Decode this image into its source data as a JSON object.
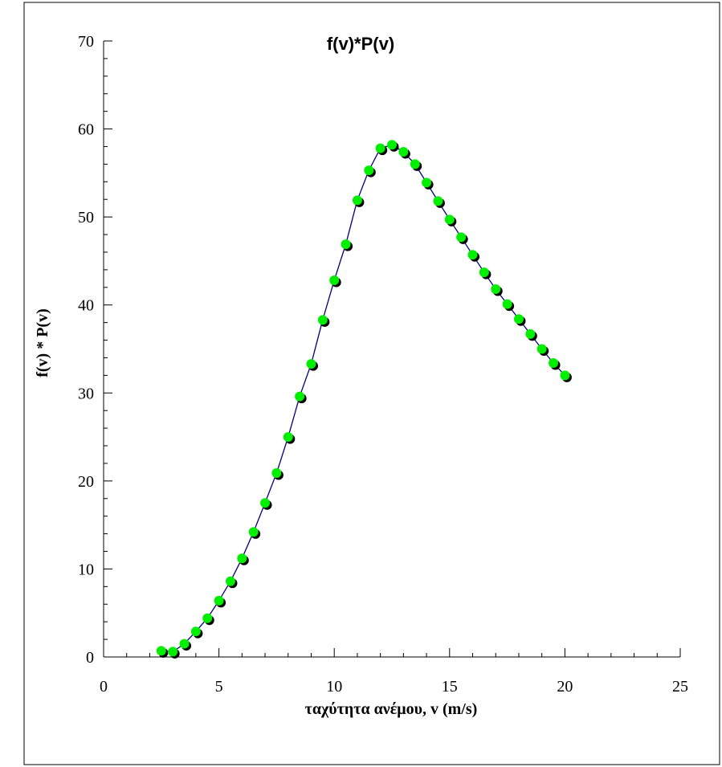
{
  "chart_data": {
    "type": "line",
    "title": "f(v)*P(v)",
    "xlabel": "ταχύτητα ανέμου, v (m/s)",
    "ylabel": "f(v) * P(v)",
    "xlim": [
      0,
      25
    ],
    "ylim": [
      0,
      70
    ],
    "x_ticks": [
      0,
      5,
      10,
      15,
      20,
      25
    ],
    "y_ticks": [
      0,
      10,
      20,
      30,
      40,
      50,
      60,
      70
    ],
    "grid": false,
    "legend": "none",
    "line_color": "#000080",
    "marker_color": "#00ee00",
    "marker_shadow_color": "#000000",
    "series": [
      {
        "x": [
          2.5,
          3,
          3.5,
          4,
          4.5,
          5,
          5.5,
          6,
          6.5,
          7,
          7.5,
          8,
          8.5,
          9,
          9.5,
          10,
          10.5,
          11,
          11.5,
          12,
          12.5,
          13,
          13.5,
          14,
          14.5,
          15,
          15.5,
          16,
          16.5,
          17,
          17.5,
          18,
          18.5,
          19,
          19.5,
          20
        ],
        "values": [
          0.7,
          0.6,
          1.5,
          2.9,
          4.4,
          6.4,
          8.6,
          11.2,
          14.2,
          17.5,
          20.9,
          25.0,
          29.6,
          33.3,
          38.3,
          42.8,
          46.9,
          51.9,
          55.3,
          57.8,
          58.2,
          57.4,
          56.0,
          53.9,
          51.8,
          49.7,
          47.7,
          45.7,
          43.7,
          41.8,
          40.1,
          38.4,
          36.7,
          35.0,
          33.4,
          32.0
        ]
      }
    ]
  }
}
